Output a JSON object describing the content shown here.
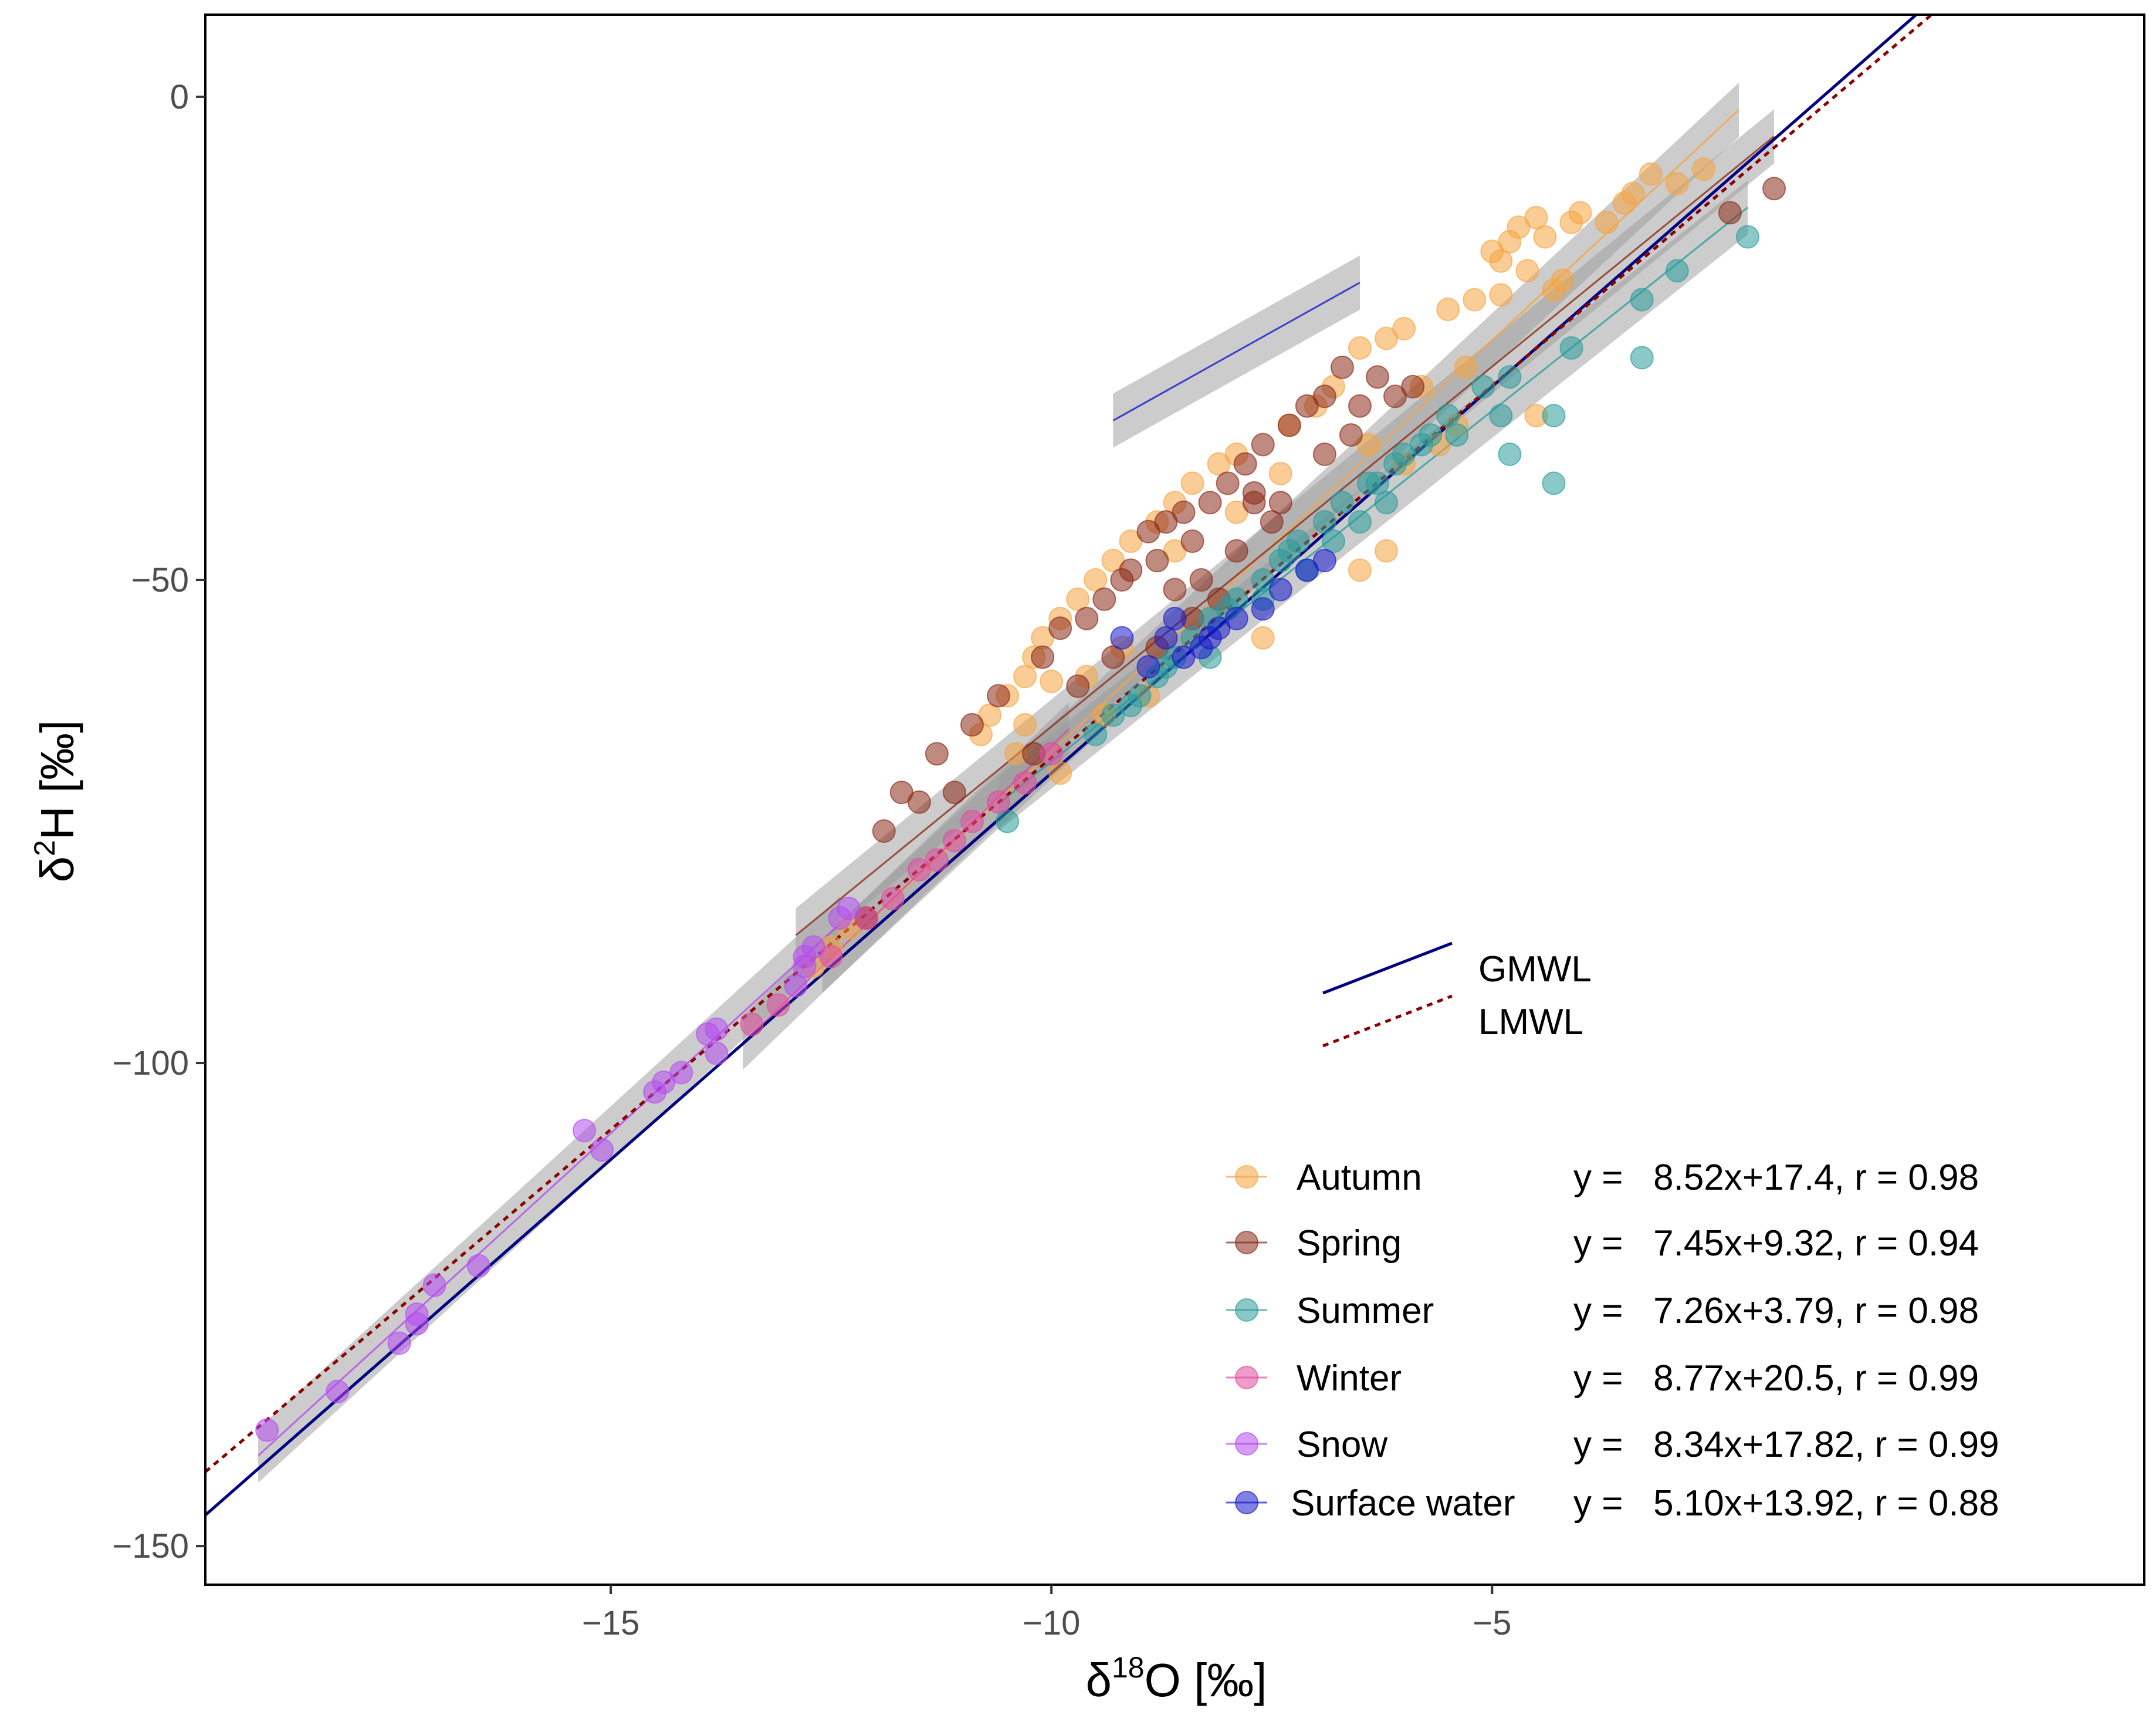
{
  "chart_data": {
    "type": "scatter",
    "title": "",
    "xlabel": {
      "prefix": "δ",
      "sup": "18",
      "suffix": "O [‰]"
    },
    "ylabel": {
      "prefix": "δ",
      "sup": "2",
      "suffix": "H [‰]"
    },
    "xlim": [
      -19.6,
      2.4
    ],
    "ylim": [
      -154,
      8.5
    ],
    "xticks": [
      -15,
      -10,
      -5
    ],
    "yticks": [
      0,
      -50,
      -100,
      -150
    ],
    "xtick_labels": [
      "−15",
      "−10",
      "−5"
    ],
    "ytick_labels": [
      "0",
      "−50",
      "−100",
      "−150"
    ],
    "grid": false,
    "lines_legend": [
      {
        "name": "GMWL",
        "color": "#000080",
        "style": "solid",
        "slope": 8,
        "intercept": 10
      },
      {
        "name": "LMWL",
        "color": "#8b0000",
        "style": "dotted",
        "slope": 7.7,
        "intercept": 8.6
      }
    ],
    "series": [
      {
        "name": "Autumn",
        "color": "#f5a442",
        "equation": "y =   8.52x+17.4, r = 0.98",
        "fit": {
          "slope": 8.52,
          "intercept": 17.4,
          "x_range": [
            -12.6,
            -2.2
          ]
        },
        "points": [
          [
            -2.6,
            -7.5
          ],
          [
            -3.2,
            -8
          ],
          [
            -2.9,
            -9
          ],
          [
            -3.4,
            -10
          ],
          [
            -3.5,
            -11
          ],
          [
            -4,
            -12
          ],
          [
            -4.1,
            -13
          ],
          [
            -4.5,
            -12.5
          ],
          [
            -4.7,
            -13.5
          ],
          [
            -4.4,
            -14.5
          ],
          [
            -3.7,
            -13
          ],
          [
            -4.8,
            -15
          ],
          [
            -5,
            -16
          ],
          [
            -4.9,
            -17
          ],
          [
            -4.6,
            -18
          ],
          [
            -4.2,
            -19
          ],
          [
            -4.3,
            -20
          ],
          [
            -4.9,
            -20.5
          ],
          [
            -5.2,
            -21
          ],
          [
            -5.5,
            -22
          ],
          [
            -6,
            -24
          ],
          [
            -6.2,
            -25
          ],
          [
            -6.5,
            -26
          ],
          [
            -5.3,
            -28
          ],
          [
            -5.8,
            -30
          ],
          [
            -6.8,
            -30
          ],
          [
            -7,
            -32
          ],
          [
            -7.3,
            -34
          ],
          [
            -6.4,
            -36
          ],
          [
            -7.9,
            -37
          ],
          [
            -8.1,
            -38
          ],
          [
            -8.4,
            -40
          ],
          [
            -8.6,
            -42
          ],
          [
            -8.8,
            -44
          ],
          [
            -9.1,
            -46
          ],
          [
            -9.3,
            -48
          ],
          [
            -9.5,
            -50
          ],
          [
            -9.7,
            -52
          ],
          [
            -9.9,
            -54
          ],
          [
            -10.1,
            -56
          ],
          [
            -10.2,
            -58
          ],
          [
            -10.3,
            -60
          ],
          [
            -10.5,
            -62
          ],
          [
            -10.7,
            -64
          ],
          [
            -10.8,
            -66
          ],
          [
            -10.4,
            -68
          ],
          [
            -9.9,
            -70
          ],
          [
            -8.6,
            -47
          ],
          [
            -7.9,
            -43
          ],
          [
            -7.4,
            -39
          ],
          [
            -6.5,
            -49
          ],
          [
            -6.2,
            -47
          ],
          [
            -7.6,
            -56
          ],
          [
            -9.6,
            -60
          ],
          [
            -9.2,
            -57
          ],
          [
            -10,
            -60.5
          ],
          [
            -9.4,
            -64
          ],
          [
            -8.9,
            -62
          ],
          [
            -6,
            -38
          ],
          [
            -5.6,
            -36
          ],
          [
            -5.4,
            -34
          ],
          [
            -4.5,
            -33
          ],
          [
            -10.3,
            -65
          ],
          [
            -12.5,
            -88
          ],
          [
            -12.3,
            -86
          ],
          [
            -12.7,
            -90
          ]
        ]
      },
      {
        "name": "Spring",
        "color": "#8b2a17",
        "equation": "y =   7.45x+9.32, r = 0.94",
        "fit": {
          "slope": 7.45,
          "intercept": 9.32,
          "x_range": [
            -12.9,
            -1.8
          ]
        },
        "points": [
          [
            -1.8,
            -9.5
          ],
          [
            -2.3,
            -12
          ],
          [
            -6.7,
            -28
          ],
          [
            -6.3,
            -29
          ],
          [
            -6.9,
            -31
          ],
          [
            -7.1,
            -32
          ],
          [
            -6.5,
            -32
          ],
          [
            -7.3,
            -34
          ],
          [
            -7.6,
            -36
          ],
          [
            -7.8,
            -38
          ],
          [
            -8,
            -40
          ],
          [
            -8.2,
            -42
          ],
          [
            -8.5,
            -43
          ],
          [
            -8.7,
            -44
          ],
          [
            -8.9,
            -45
          ],
          [
            -8.4,
            -46
          ],
          [
            -8.8,
            -48
          ],
          [
            -9.1,
            -49
          ],
          [
            -9.2,
            -50
          ],
          [
            -8.6,
            -51
          ],
          [
            -9.4,
            -52
          ],
          [
            -9.6,
            -54
          ],
          [
            -9.9,
            -55
          ],
          [
            -10.1,
            -58
          ],
          [
            -10.6,
            -62
          ],
          [
            -10.9,
            -65
          ],
          [
            -11.3,
            -68
          ],
          [
            -11.7,
            -72
          ],
          [
            -11.9,
            -76
          ],
          [
            -12.1,
            -85
          ],
          [
            -6.1,
            -31
          ],
          [
            -5.9,
            -30
          ],
          [
            -7.5,
            -44
          ],
          [
            -7.9,
            -47
          ],
          [
            -8.3,
            -50
          ],
          [
            -8.1,
            -52
          ],
          [
            -8.4,
            -54
          ],
          [
            -8.8,
            -57
          ],
          [
            -9.3,
            -58
          ],
          [
            -9.7,
            -61
          ],
          [
            -10.2,
            -68
          ],
          [
            -11.1,
            -72
          ],
          [
            -7.7,
            -41
          ],
          [
            -7.4,
            -42
          ],
          [
            -6.9,
            -37
          ],
          [
            -6.6,
            -35
          ],
          [
            -7.7,
            -42
          ],
          [
            -11.5,
            -73
          ]
        ]
      },
      {
        "name": "Summer",
        "color": "#2a9d9b",
        "equation": "y =   7.26x+3.79, r = 0.98",
        "fit": {
          "slope": 7.26,
          "intercept": 3.79,
          "x_range": [
            -10.6,
            -2.1
          ]
        },
        "points": [
          [
            -2.1,
            -14.5
          ],
          [
            -2.9,
            -18
          ],
          [
            -3.3,
            -21
          ],
          [
            -3.3,
            -27
          ],
          [
            -4.1,
            -26
          ],
          [
            -4.8,
            -29
          ],
          [
            -4.3,
            -33
          ],
          [
            -4.9,
            -33
          ],
          [
            -4.8,
            -37
          ],
          [
            -4.3,
            -40
          ],
          [
            -5.4,
            -35
          ],
          [
            -5.8,
            -36
          ],
          [
            -6.1,
            -38
          ],
          [
            -6.4,
            -40
          ],
          [
            -6.7,
            -42
          ],
          [
            -6.9,
            -44
          ],
          [
            -7.2,
            -46
          ],
          [
            -7.4,
            -48
          ],
          [
            -7.6,
            -50
          ],
          [
            -7.9,
            -52
          ],
          [
            -8.2,
            -54
          ],
          [
            -8.4,
            -56
          ],
          [
            -8.6,
            -58
          ],
          [
            -8.8,
            -60
          ],
          [
            -9,
            -62
          ],
          [
            -9.3,
            -64
          ],
          [
            -9.5,
            -66
          ],
          [
            -10.5,
            -75
          ],
          [
            -6.2,
            -42
          ],
          [
            -6.5,
            -44
          ],
          [
            -6.8,
            -46
          ],
          [
            -7.1,
            -49
          ],
          [
            -7.6,
            -52
          ],
          [
            -8.2,
            -58
          ],
          [
            -6,
            -37
          ],
          [
            -5.7,
            -35
          ],
          [
            -5.5,
            -33
          ],
          [
            -5.1,
            -30
          ],
          [
            -6.3,
            -40
          ],
          [
            -7.3,
            -47
          ],
          [
            -8,
            -53
          ],
          [
            -8.7,
            -59
          ],
          [
            -9.1,
            -63
          ]
        ]
      },
      {
        "name": "Winter",
        "color": "#e04ca0",
        "equation": "y =   8.77x+20.5, r = 0.99",
        "fit": {
          "slope": 8.77,
          "intercept": 20.5,
          "x_range": [
            -13.5,
            -9.8
          ]
        },
        "points": [
          [
            -13.4,
            -96
          ],
          [
            -13.1,
            -94
          ],
          [
            -12.5,
            -89
          ],
          [
            -12.1,
            -85
          ],
          [
            -11.8,
            -83
          ],
          [
            -11.5,
            -80
          ],
          [
            -11.3,
            -79
          ],
          [
            -11.1,
            -77
          ],
          [
            -10.9,
            -75
          ],
          [
            -10.6,
            -73
          ],
          [
            -10.3,
            -71
          ],
          [
            -10,
            -68
          ]
        ]
      },
      {
        "name": "Snow",
        "color": "#b54cf0",
        "equation": "y =   8.34x+17.82, r = 0.99",
        "fit": {
          "slope": 8.34,
          "intercept": 17.82,
          "x_range": [
            -19,
            -12.4
          ]
        },
        "points": [
          [
            -18.9,
            -138
          ],
          [
            -18.1,
            -134
          ],
          [
            -17.4,
            -129
          ],
          [
            -17.2,
            -127
          ],
          [
            -17.2,
            -126
          ],
          [
            -17,
            -123
          ],
          [
            -16.5,
            -121
          ],
          [
            -15.3,
            -107
          ],
          [
            -15.1,
            -109
          ],
          [
            -14.5,
            -103
          ],
          [
            -14.4,
            -102
          ],
          [
            -14.2,
            -101
          ],
          [
            -13.9,
            -97
          ],
          [
            -13.8,
            -96.5
          ],
          [
            -13.8,
            -99
          ],
          [
            -12.9,
            -92
          ],
          [
            -12.8,
            -89
          ],
          [
            -12.7,
            -88
          ],
          [
            -12.8,
            -90
          ],
          [
            -12.4,
            -85
          ],
          [
            -12.3,
            -84
          ]
        ]
      },
      {
        "name": "Surface water",
        "color": "#1a1acd",
        "equation": "y =   5.10x+13.92, r = 0.88",
        "fit": {
          "slope": 5.1,
          "intercept": 13.92,
          "x_range": [
            -9.3,
            -6.5
          ]
        },
        "points": [
          [
            -9.2,
            -56
          ],
          [
            -8.9,
            -59
          ],
          [
            -8.7,
            -56
          ],
          [
            -8.5,
            -58
          ],
          [
            -8.3,
            -57
          ],
          [
            -8.2,
            -56
          ],
          [
            -7.9,
            -54
          ],
          [
            -7.6,
            -53
          ],
          [
            -7.4,
            -51
          ],
          [
            -7.1,
            -49
          ],
          [
            -6.9,
            -48
          ],
          [
            -8.6,
            -54
          ],
          [
            -8.1,
            -55
          ]
        ]
      }
    ]
  }
}
